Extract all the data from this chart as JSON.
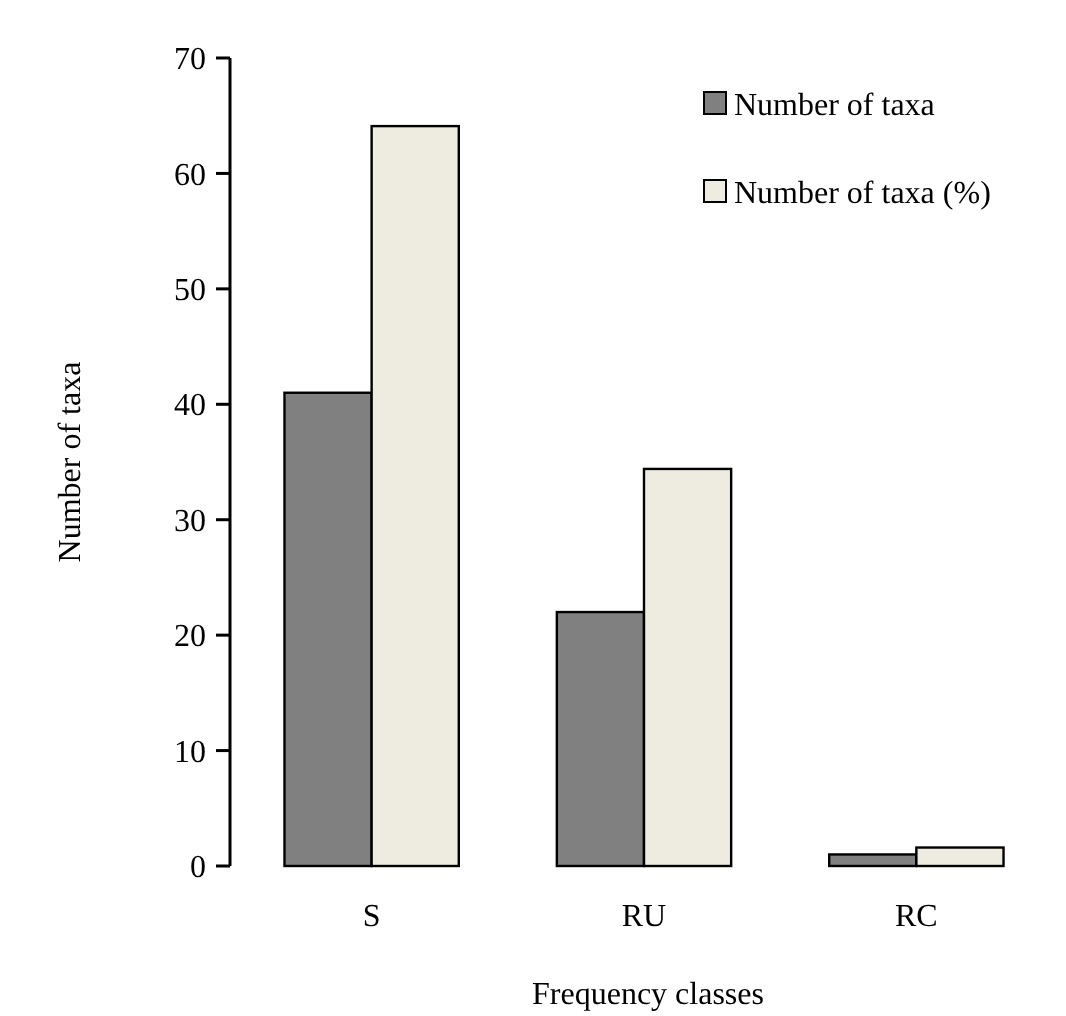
{
  "chart_data": {
    "type": "bar",
    "xlabel": "Frequency classes",
    "ylabel": "Number of taxa",
    "categories": [
      "S",
      "RU",
      "RC"
    ],
    "series": [
      {
        "name": "Number of taxa",
        "color": "#808080",
        "values": [
          41,
          22,
          1
        ]
      },
      {
        "name": "Number of taxa (%)",
        "color": "#eeebe0",
        "values": [
          64.1,
          34.4,
          1.6
        ]
      }
    ],
    "ylim": [
      0,
      70
    ],
    "yticks": [
      0,
      10,
      20,
      30,
      40,
      50,
      60,
      70
    ],
    "grid": false,
    "legend": "top right"
  }
}
